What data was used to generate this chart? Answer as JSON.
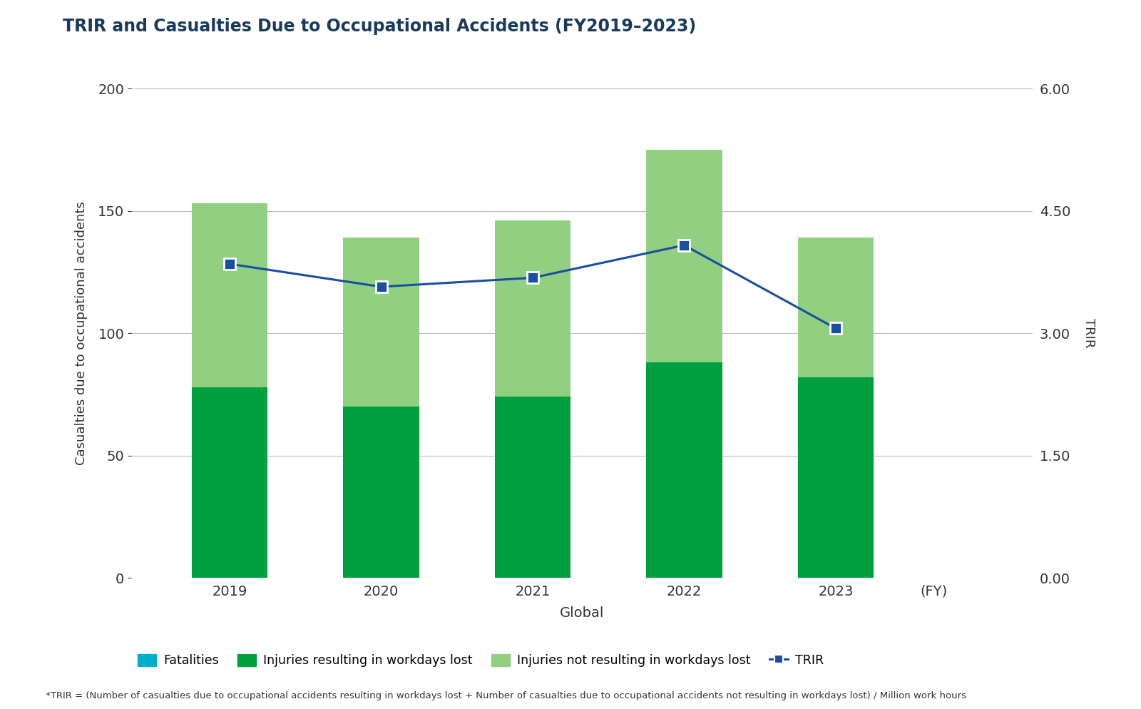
{
  "title": "TRIR and Casualties Due to Occupational Accidents (FY2019–2023)",
  "years": [
    "2019",
    "2020",
    "2021",
    "2022",
    "2023"
  ],
  "injuries_workdays_lost": [
    78,
    70,
    74,
    88,
    82
  ],
  "injuries_not_workdays_lost": [
    75,
    69,
    72,
    87,
    57
  ],
  "trir_values": [
    3.85,
    3.57,
    3.68,
    4.08,
    3.06
  ],
  "bar_color_dark": "#00a040",
  "bar_color_light": "#90d080",
  "bar_color_fatalities": "#00b0c8",
  "line_color": "#1a4ea0",
  "marker_color": "#1a4ea0",
  "ylabel_left": "Casualties due to occupational accidents",
  "ylabel_right": "TRIR",
  "xlabel": "Global",
  "ylim_left": [
    0,
    200
  ],
  "ylim_right": [
    0.0,
    6.0
  ],
  "yticks_left": [
    0,
    50,
    100,
    150,
    200
  ],
  "yticks_right": [
    0.0,
    1.5,
    3.0,
    4.5,
    6.0
  ],
  "ytick_labels_right": [
    "0.00",
    "1.50",
    "3.00",
    "4.50",
    "6.00"
  ],
  "background_color": "#ffffff",
  "grid_color": "#bbbbbb",
  "title_color": "#1a3a5c",
  "legend_note": "*TRIR = (Number of casualties due to occupational accidents resulting in workdays lost + Number of casualties due to occupational accidents not resulting in workdays lost) / Million work hours",
  "fy_label": "(FY)"
}
